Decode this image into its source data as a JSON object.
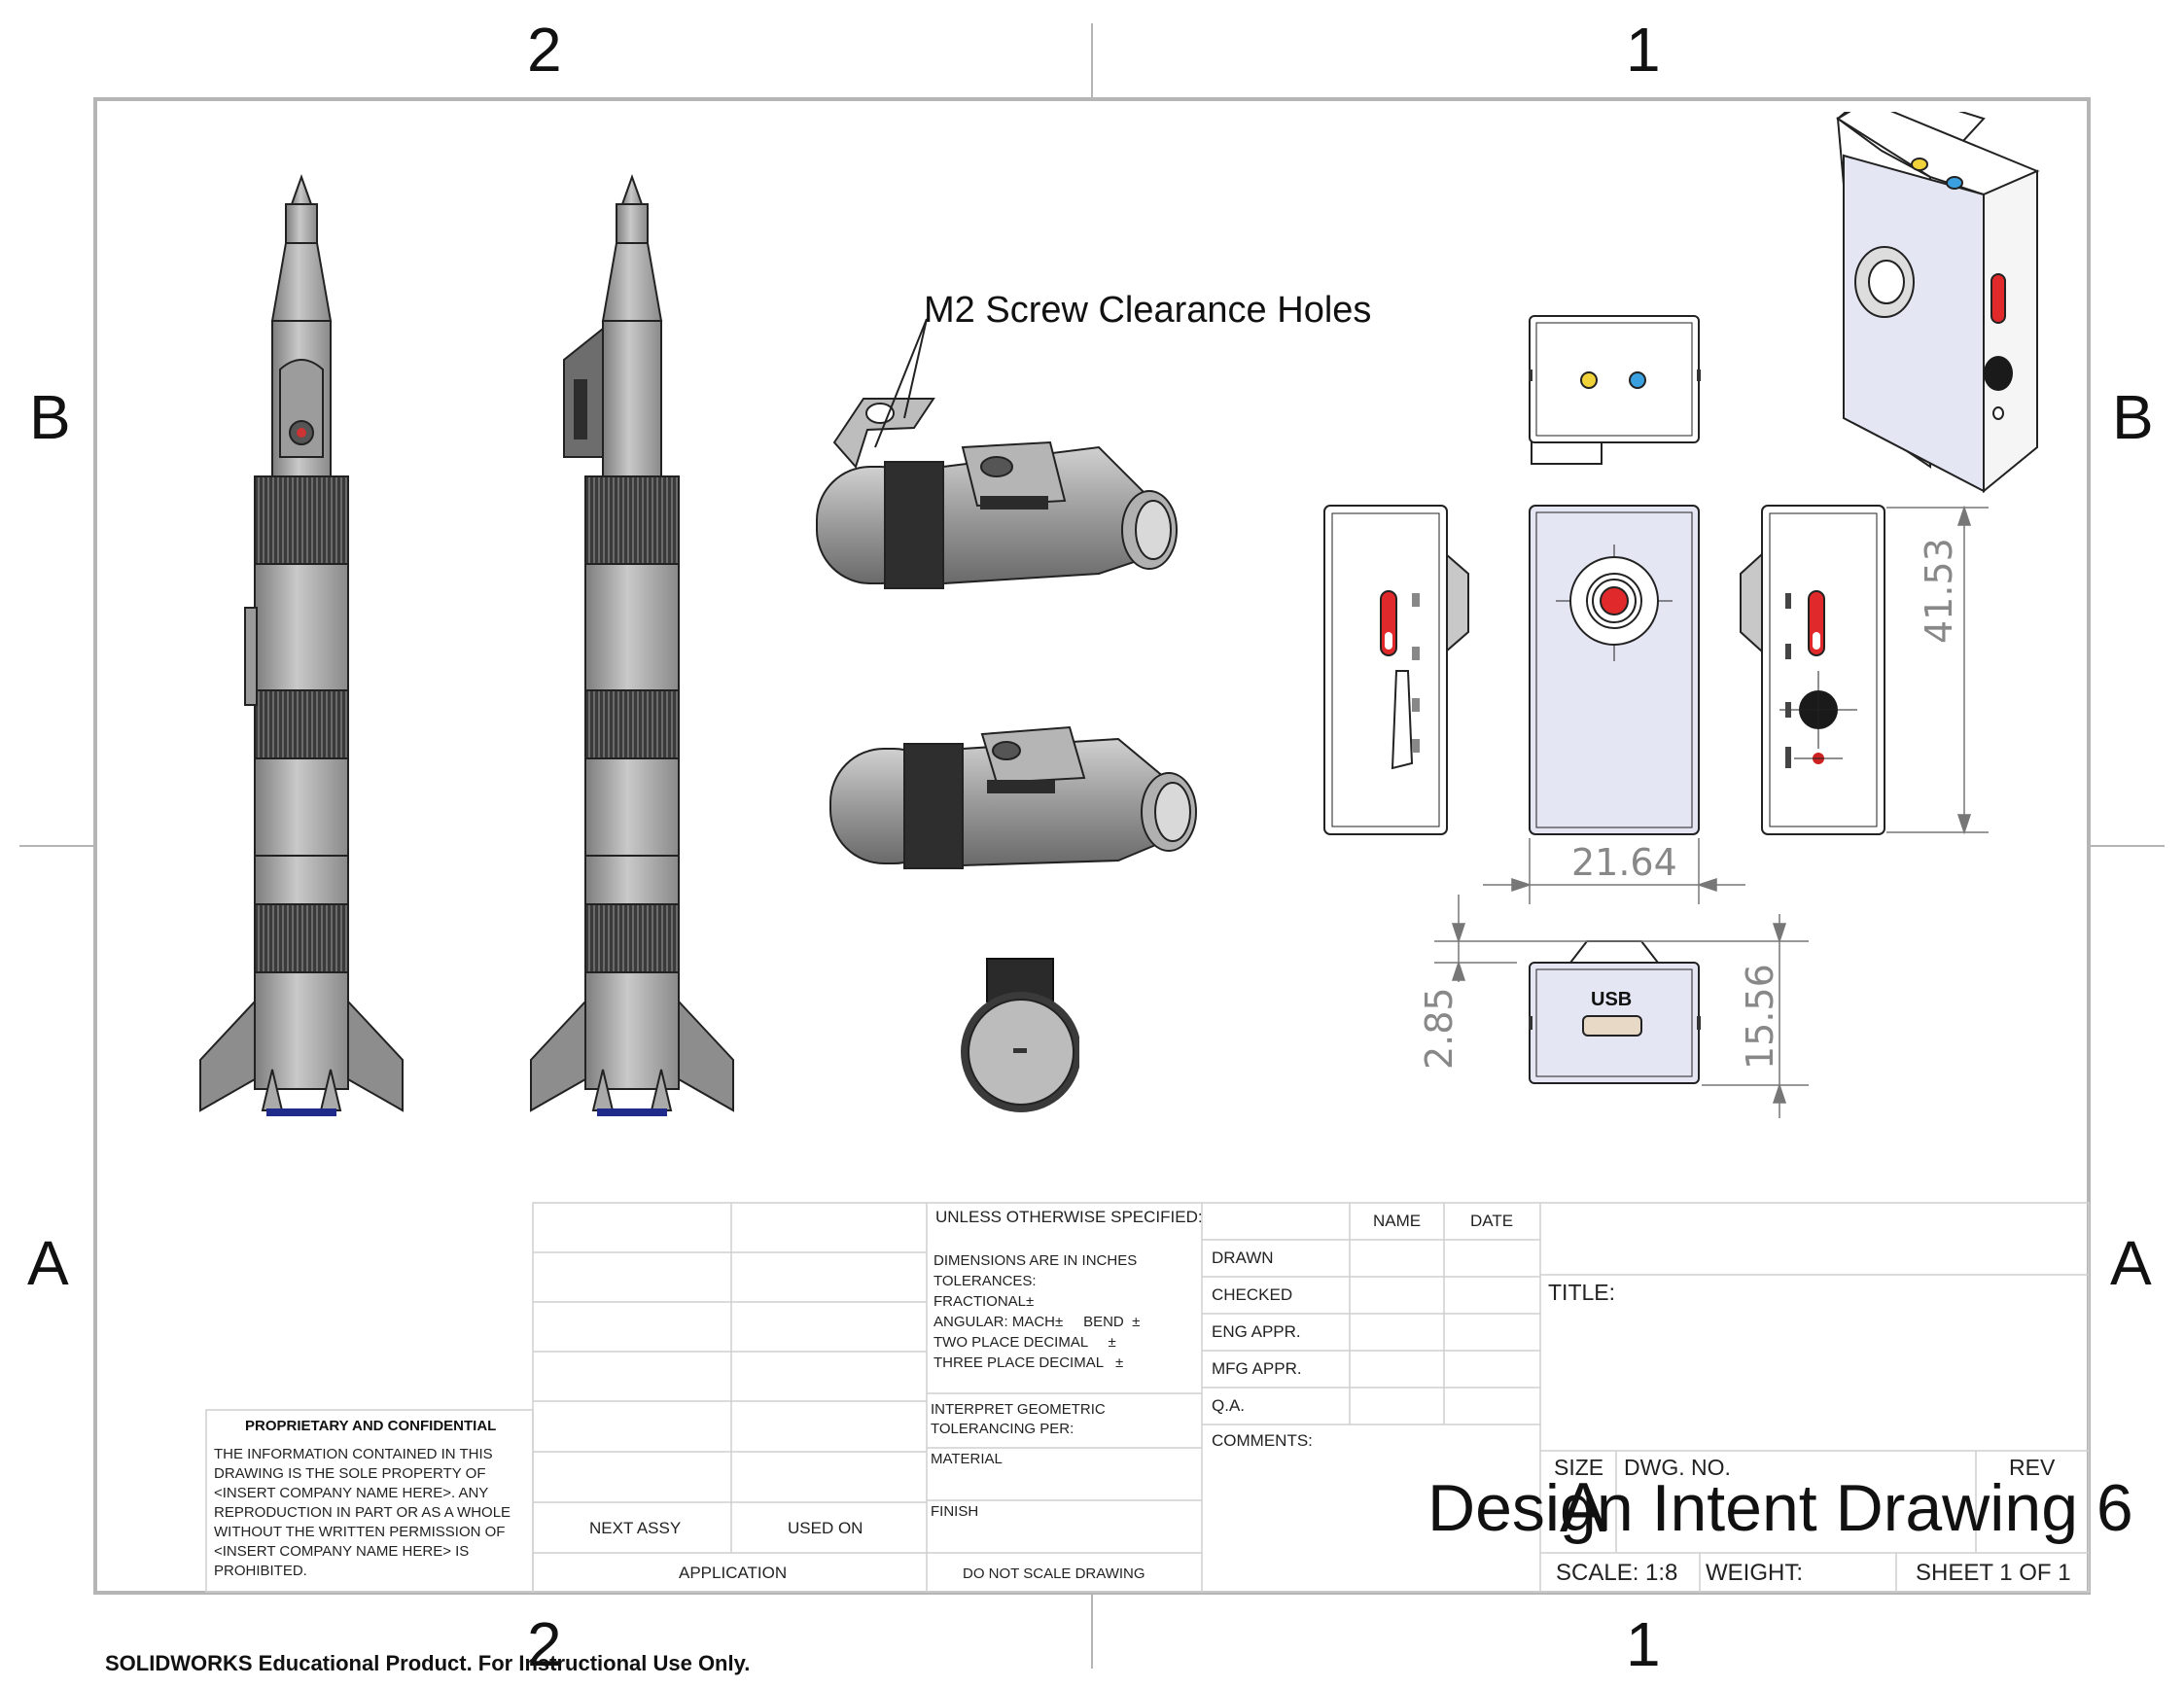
{
  "zones": {
    "top": [
      "2",
      "1"
    ],
    "bottom": [
      "2",
      "1"
    ],
    "left": [
      "B",
      "A"
    ],
    "right": [
      "B",
      "A"
    ]
  },
  "callout": "M2 Screw Clearance Holes",
  "dimensions": {
    "height": "41.53",
    "width": "21.64",
    "lip": "2.85",
    "depth": "15.56"
  },
  "usb_label": "USB",
  "title_block": {
    "unless_specified": "UNLESS OTHERWISE SPECIFIED:",
    "name_header": "NAME",
    "date_header": "DATE",
    "tolerance_lines": [
      "DIMENSIONS ARE IN INCHES",
      "TOLERANCES:",
      "FRACTIONAL±",
      "ANGULAR: MACH±     BEND  ±",
      "TWO PLACE DECIMAL     ±",
      "THREE PLACE DECIMAL   ±"
    ],
    "interpret": [
      "INTERPRET GEOMETRIC",
      "TOLERANCING PER:"
    ],
    "material": "MATERIAL",
    "finish": "FINISH",
    "do_not_scale": "DO NOT SCALE DRAWING",
    "approvals": [
      "DRAWN",
      "CHECKED",
      "ENG APPR.",
      "MFG APPR.",
      "Q.A."
    ],
    "comments": "COMMENTS:",
    "title_label": "TITLE:",
    "size_label": "SIZE",
    "size_value": "A",
    "dwg_no_label": "DWG.  NO.",
    "rev_label": "REV",
    "drawing_title": "Design Intent Drawing 6",
    "scale": "SCALE: 1:8",
    "weight": "WEIGHT:",
    "sheet": "SHEET 1 OF 1",
    "next_assy": "NEXT ASSY",
    "used_on": "USED ON",
    "application": "APPLICATION",
    "proprietary_heading": "PROPRIETARY AND CONFIDENTIAL",
    "proprietary_lines": [
      "THE INFORMATION CONTAINED IN THIS",
      "DRAWING IS THE SOLE PROPERTY OF",
      "<INSERT COMPANY NAME HERE>.  ANY",
      "REPRODUCTION IN PART OR AS A WHOLE",
      "WITHOUT THE WRITTEN PERMISSION OF",
      "<INSERT COMPANY NAME HERE> IS",
      "PROHIBITED."
    ]
  },
  "footer": "SOLIDWORKS Educational Product. For Instructional Use Only.",
  "colors": {
    "border": "#b5b5b5",
    "part_face": "#e4e6f4",
    "rocket_gray": "#a9a9a9",
    "button_red": "#e0292a",
    "led_yellow": "#f0d23a",
    "led_blue": "#3aa0e0"
  }
}
